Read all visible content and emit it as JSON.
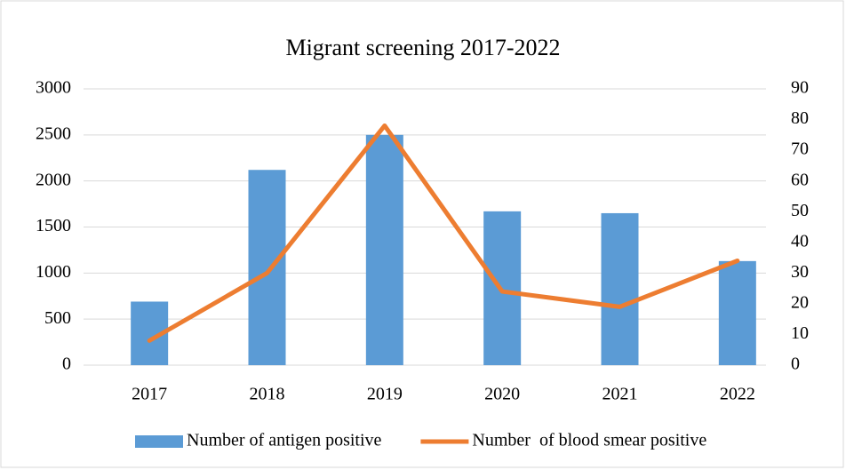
{
  "chart_data": {
    "type": "bar_line",
    "title": "Migrant screening 2017-2022",
    "categories": [
      "2017",
      "2018",
      "2019",
      "2020",
      "2021",
      "2022"
    ],
    "series": [
      {
        "name": "Number of antigen positive",
        "color": "#5b9bd5",
        "type": "bar",
        "values": [
          690,
          2120,
          2500,
          1670,
          1650,
          1130
        ]
      },
      {
        "name": "Number  of blood smear positive",
        "color": "#ed7d31",
        "type": "line",
        "axis": "y2",
        "values": [
          8,
          30,
          78,
          24,
          19,
          34
        ]
      }
    ],
    "ylim": [
      0,
      3000
    ],
    "yticks": [
      0,
      500,
      1000,
      1500,
      2000,
      2500,
      3000
    ],
    "y2lim": [
      0,
      90
    ],
    "y2ticks": [
      0,
      10,
      20,
      30,
      40,
      50,
      60,
      70,
      80,
      90
    ],
    "grid": true,
    "legend": "bottom"
  }
}
